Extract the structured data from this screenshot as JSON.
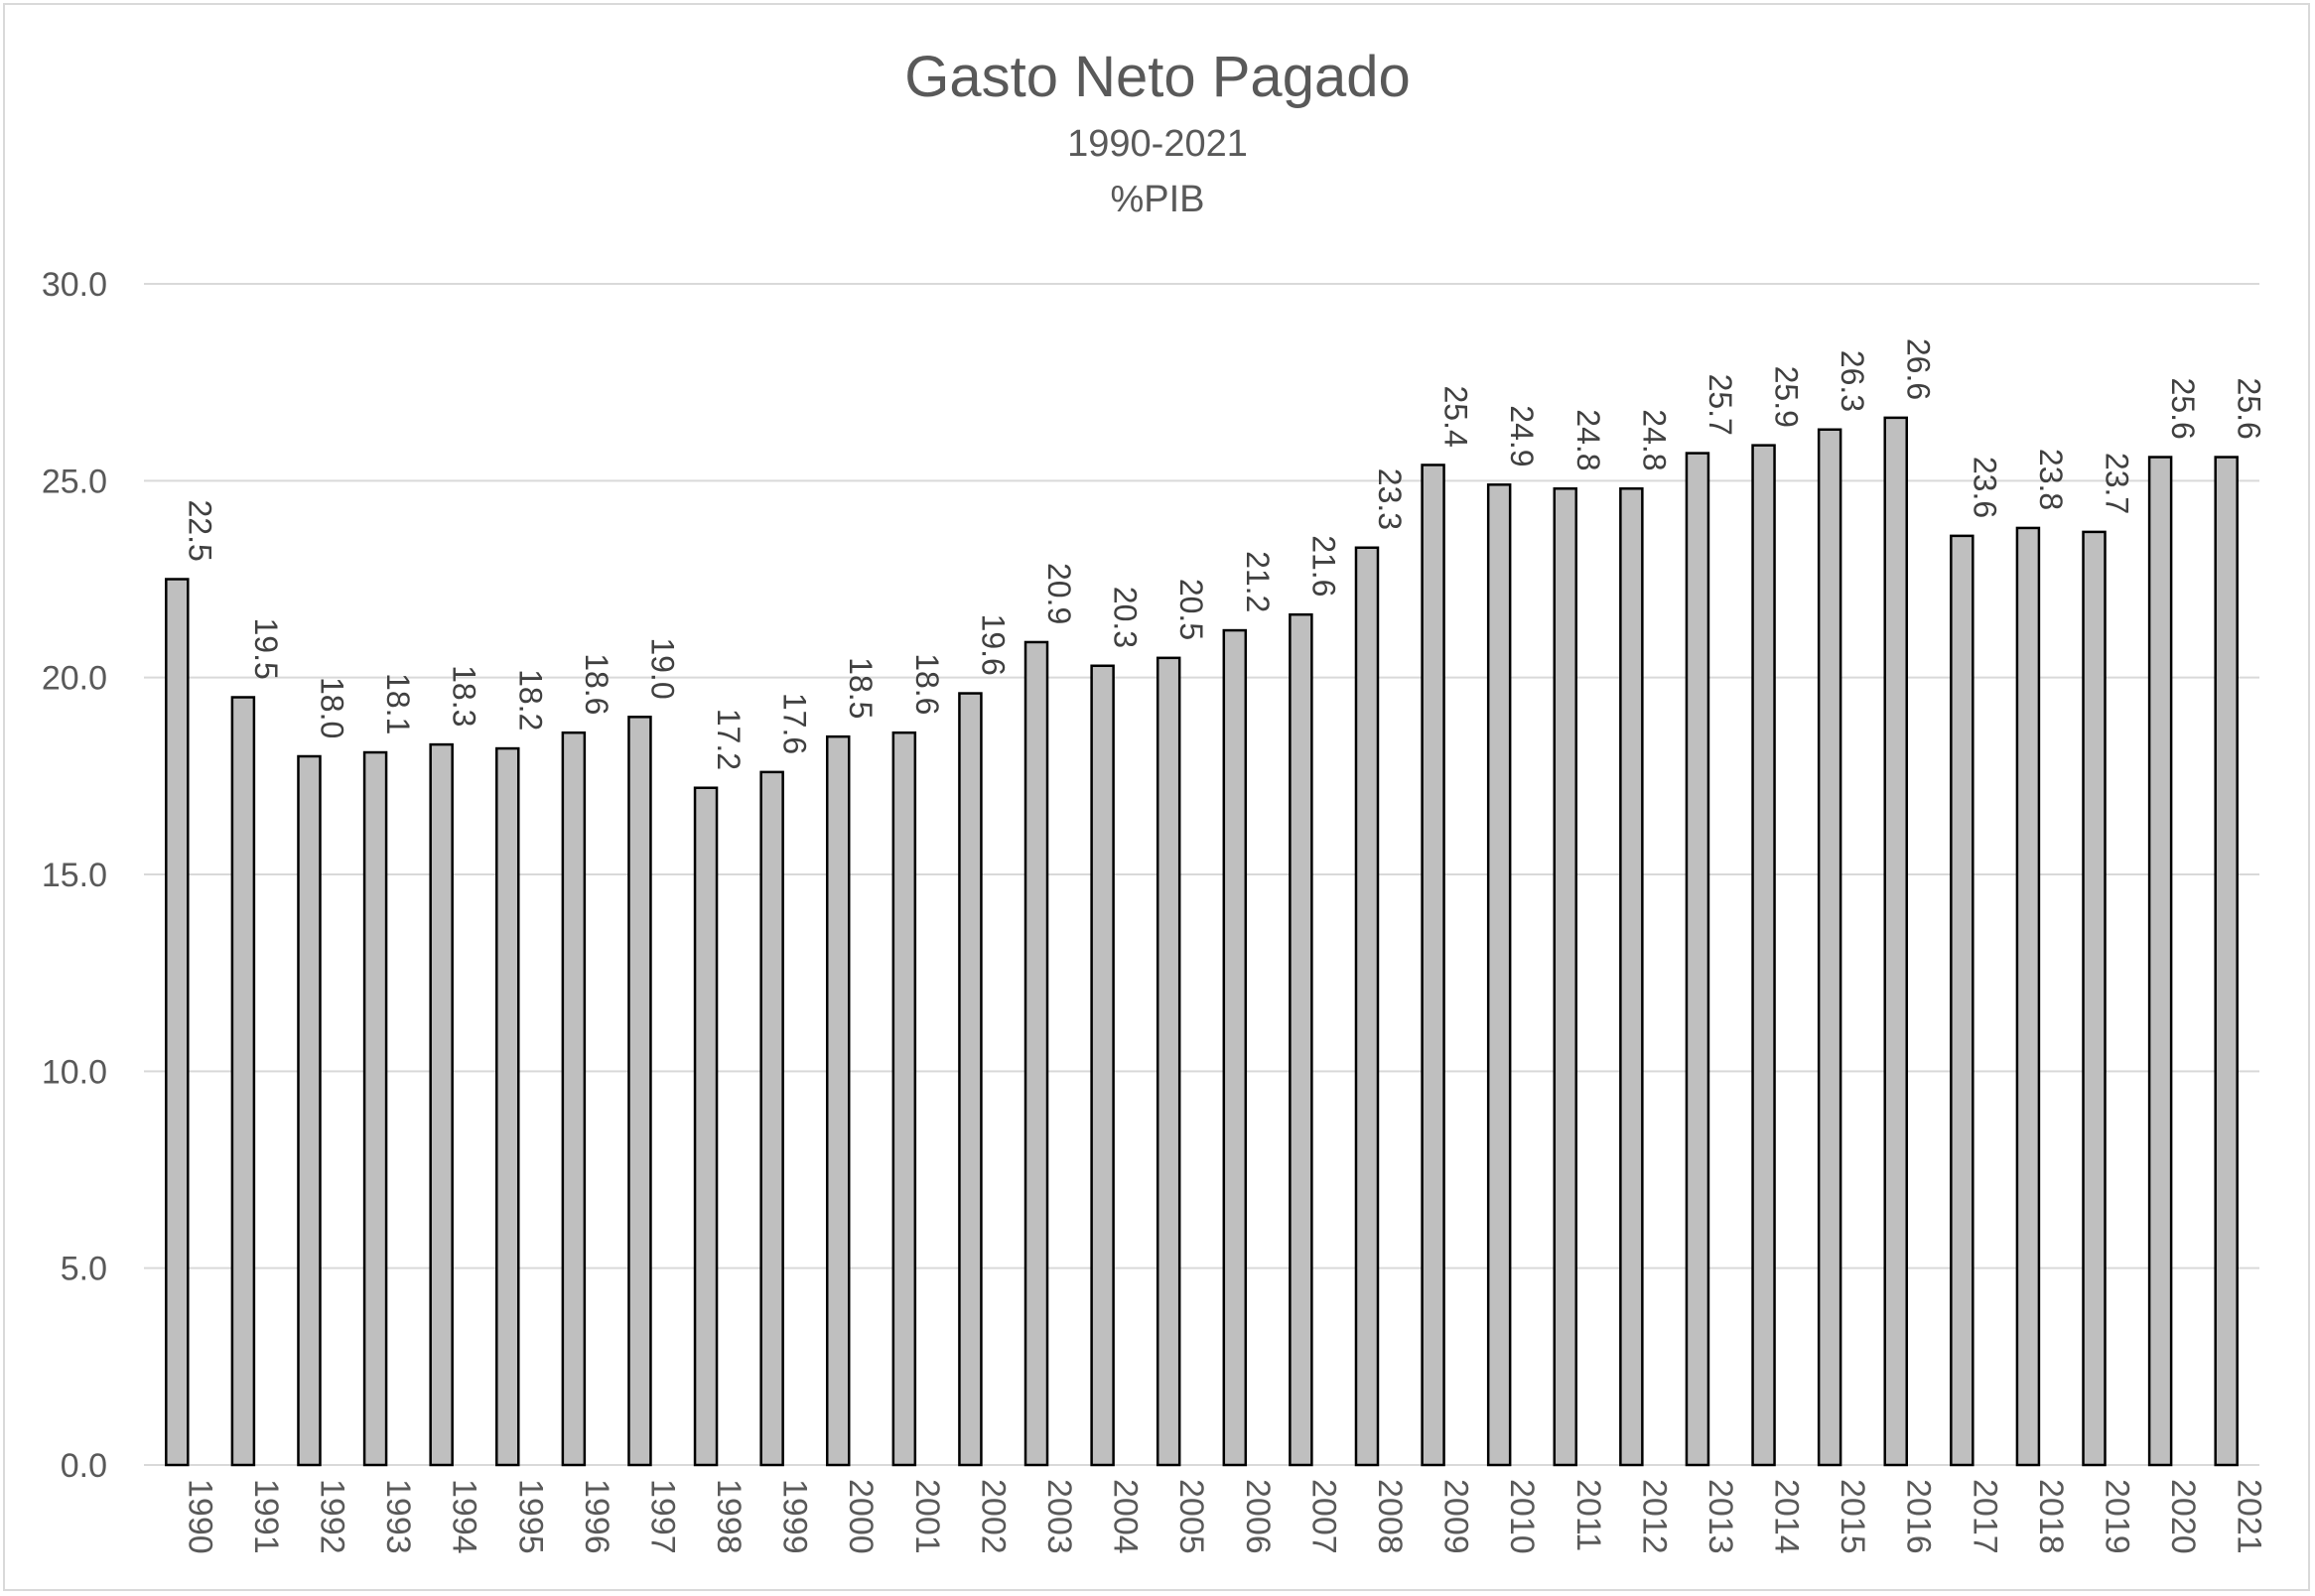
{
  "chart_data": {
    "type": "bar",
    "title": "Gasto Neto Pagado",
    "subtitle": "1990-2021",
    "unit_label": "%PIB",
    "xlabel": "",
    "ylabel": "",
    "ylim": [
      0,
      30
    ],
    "yticks": [
      "0.0",
      "5.0",
      "10.0",
      "15.0",
      "20.0",
      "25.0",
      "30.0"
    ],
    "grid": true,
    "legend": "none",
    "categories": [
      "1990",
      "1991",
      "1992",
      "1993",
      "1994",
      "1995",
      "1996",
      "1997",
      "1998",
      "1999",
      "2000",
      "2001",
      "2002",
      "2003",
      "2004",
      "2005",
      "2006",
      "2007",
      "2008",
      "2009",
      "2010",
      "2011",
      "2012",
      "2013",
      "2014",
      "2015",
      "2016",
      "2017",
      "2018",
      "2019",
      "2020",
      "2021"
    ],
    "values": [
      22.5,
      19.5,
      18.0,
      18.1,
      18.3,
      18.2,
      18.6,
      19.0,
      17.2,
      17.6,
      18.5,
      18.6,
      19.6,
      20.9,
      20.3,
      20.5,
      21.2,
      21.6,
      23.3,
      25.4,
      24.9,
      24.8,
      24.8,
      25.7,
      25.9,
      26.3,
      26.6,
      23.6,
      23.8,
      23.7,
      25.6,
      25.6
    ],
    "data_labels": [
      "22.5",
      "19.5",
      "18.0",
      "18.1",
      "18.3",
      "18.2",
      "18.6",
      "19.0",
      "17.2",
      "17.6",
      "18.5",
      "18.6",
      "19.6",
      "20.9",
      "20.3",
      "20.5",
      "21.2",
      "21.6",
      "23.3",
      "25.4",
      "24.9",
      "24.8",
      "24.8",
      "25.7",
      "25.9",
      "26.3",
      "26.6",
      "23.6",
      "23.8",
      "23.7",
      "25.6",
      "25.6"
    ],
    "colors": {
      "bar_fill": "#bfbfbf",
      "bar_stroke": "#000000",
      "grid": "#d9d9d9",
      "axis": "#d9d9d9",
      "text": "#595959"
    }
  }
}
